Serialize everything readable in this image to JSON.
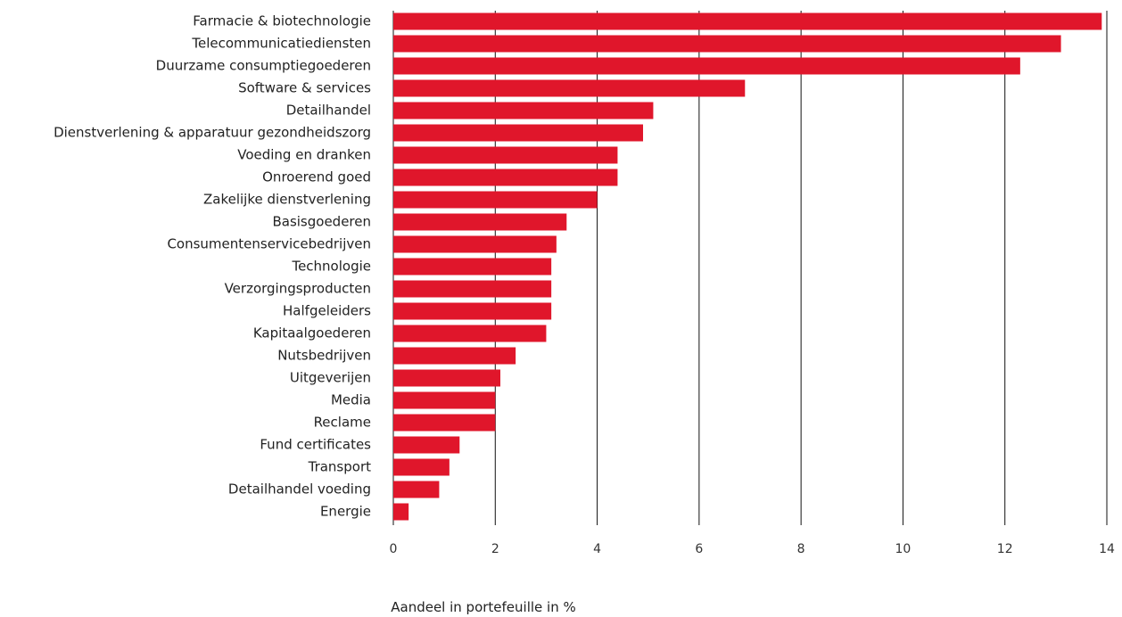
{
  "chart_data": {
    "type": "bar",
    "orientation": "horizontal",
    "categories": [
      "Farmacie & biotechnologie",
      "Telecommunicatiediensten",
      "Duurzame consumptiegoederen",
      "Software & services",
      "Detailhandel",
      "Dienstverlening & apparatuur gezondheidszorg",
      "Voeding en dranken",
      "Onroerend goed",
      "Zakelijke dienstverlening",
      "Basisgoederen",
      "Consumentenservicebedrijven",
      "Technologie",
      "Verzorgingsproducten",
      "Halfgeleiders",
      "Kapitaalgoederen",
      "Nutsbedrijven",
      "Uitgeverijen",
      "Media",
      "Reclame",
      "Fund certificates",
      "Transport",
      "Detailhandel voeding",
      "Energie"
    ],
    "values": [
      13.9,
      13.1,
      12.3,
      6.9,
      5.1,
      4.9,
      4.4,
      4.4,
      4.0,
      3.4,
      3.2,
      3.1,
      3.1,
      3.1,
      3.0,
      2.4,
      2.1,
      2.0,
      2.0,
      1.3,
      1.1,
      0.9,
      0.3
    ],
    "xlabel": "Aandeel in portefeuille in %",
    "xlim": [
      0,
      14
    ],
    "xticks": [
      0,
      2,
      4,
      6,
      8,
      10,
      12,
      14
    ],
    "grid": "vertical",
    "bar_color": "#e0162b",
    "grid_color": "#111111"
  }
}
